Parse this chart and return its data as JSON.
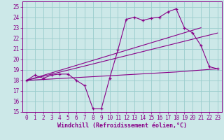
{
  "xlabel": "Windchill (Refroidissement éolien,°C)",
  "bg_color": "#cce8e8",
  "line_color": "#880088",
  "grid_color": "#99cccc",
  "xlim": [
    -0.5,
    23.5
  ],
  "ylim": [
    15,
    25.5
  ],
  "yticks": [
    15,
    16,
    17,
    18,
    19,
    20,
    21,
    22,
    23,
    24,
    25
  ],
  "xticks": [
    0,
    1,
    2,
    3,
    4,
    5,
    6,
    7,
    8,
    9,
    10,
    11,
    12,
    13,
    14,
    15,
    16,
    17,
    18,
    19,
    20,
    21,
    22,
    23
  ],
  "series1_x": [
    0,
    1,
    2,
    3,
    4,
    5,
    6,
    7,
    8,
    9,
    10,
    11,
    12,
    13,
    14,
    15,
    16,
    17,
    18,
    19,
    20,
    21,
    22,
    23
  ],
  "series1_y": [
    18.0,
    18.5,
    18.2,
    18.5,
    18.6,
    18.6,
    18.0,
    17.5,
    15.3,
    15.3,
    18.2,
    20.9,
    23.8,
    24.0,
    23.7,
    23.9,
    24.0,
    24.5,
    24.8,
    23.0,
    22.5,
    21.3,
    19.3,
    19.1
  ],
  "series2_x": [
    0,
    21
  ],
  "series2_y": [
    18.0,
    23.0
  ],
  "series3_x": [
    0,
    23
  ],
  "series3_y": [
    18.0,
    22.5
  ],
  "series4_x": [
    0,
    18,
    23
  ],
  "series4_y": [
    18.0,
    18.8,
    19.1
  ]
}
